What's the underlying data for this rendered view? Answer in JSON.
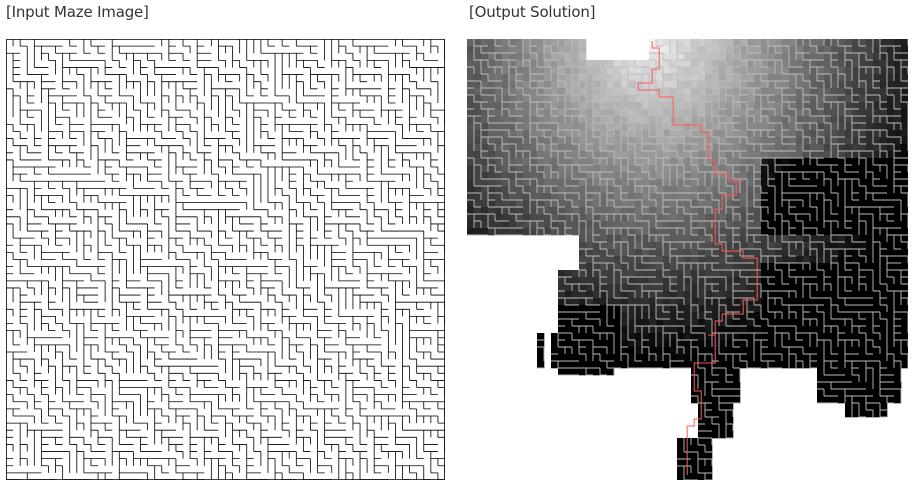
{
  "input_panel": {
    "caption": "[Input Maze Image]",
    "line_color": "#000000",
    "background": "#ffffff"
  },
  "output_panel": {
    "caption": "[Output Solution]",
    "path_color": "#ff5a5a",
    "light_gray": "#e8e8e8",
    "dark": "#000000"
  }
}
